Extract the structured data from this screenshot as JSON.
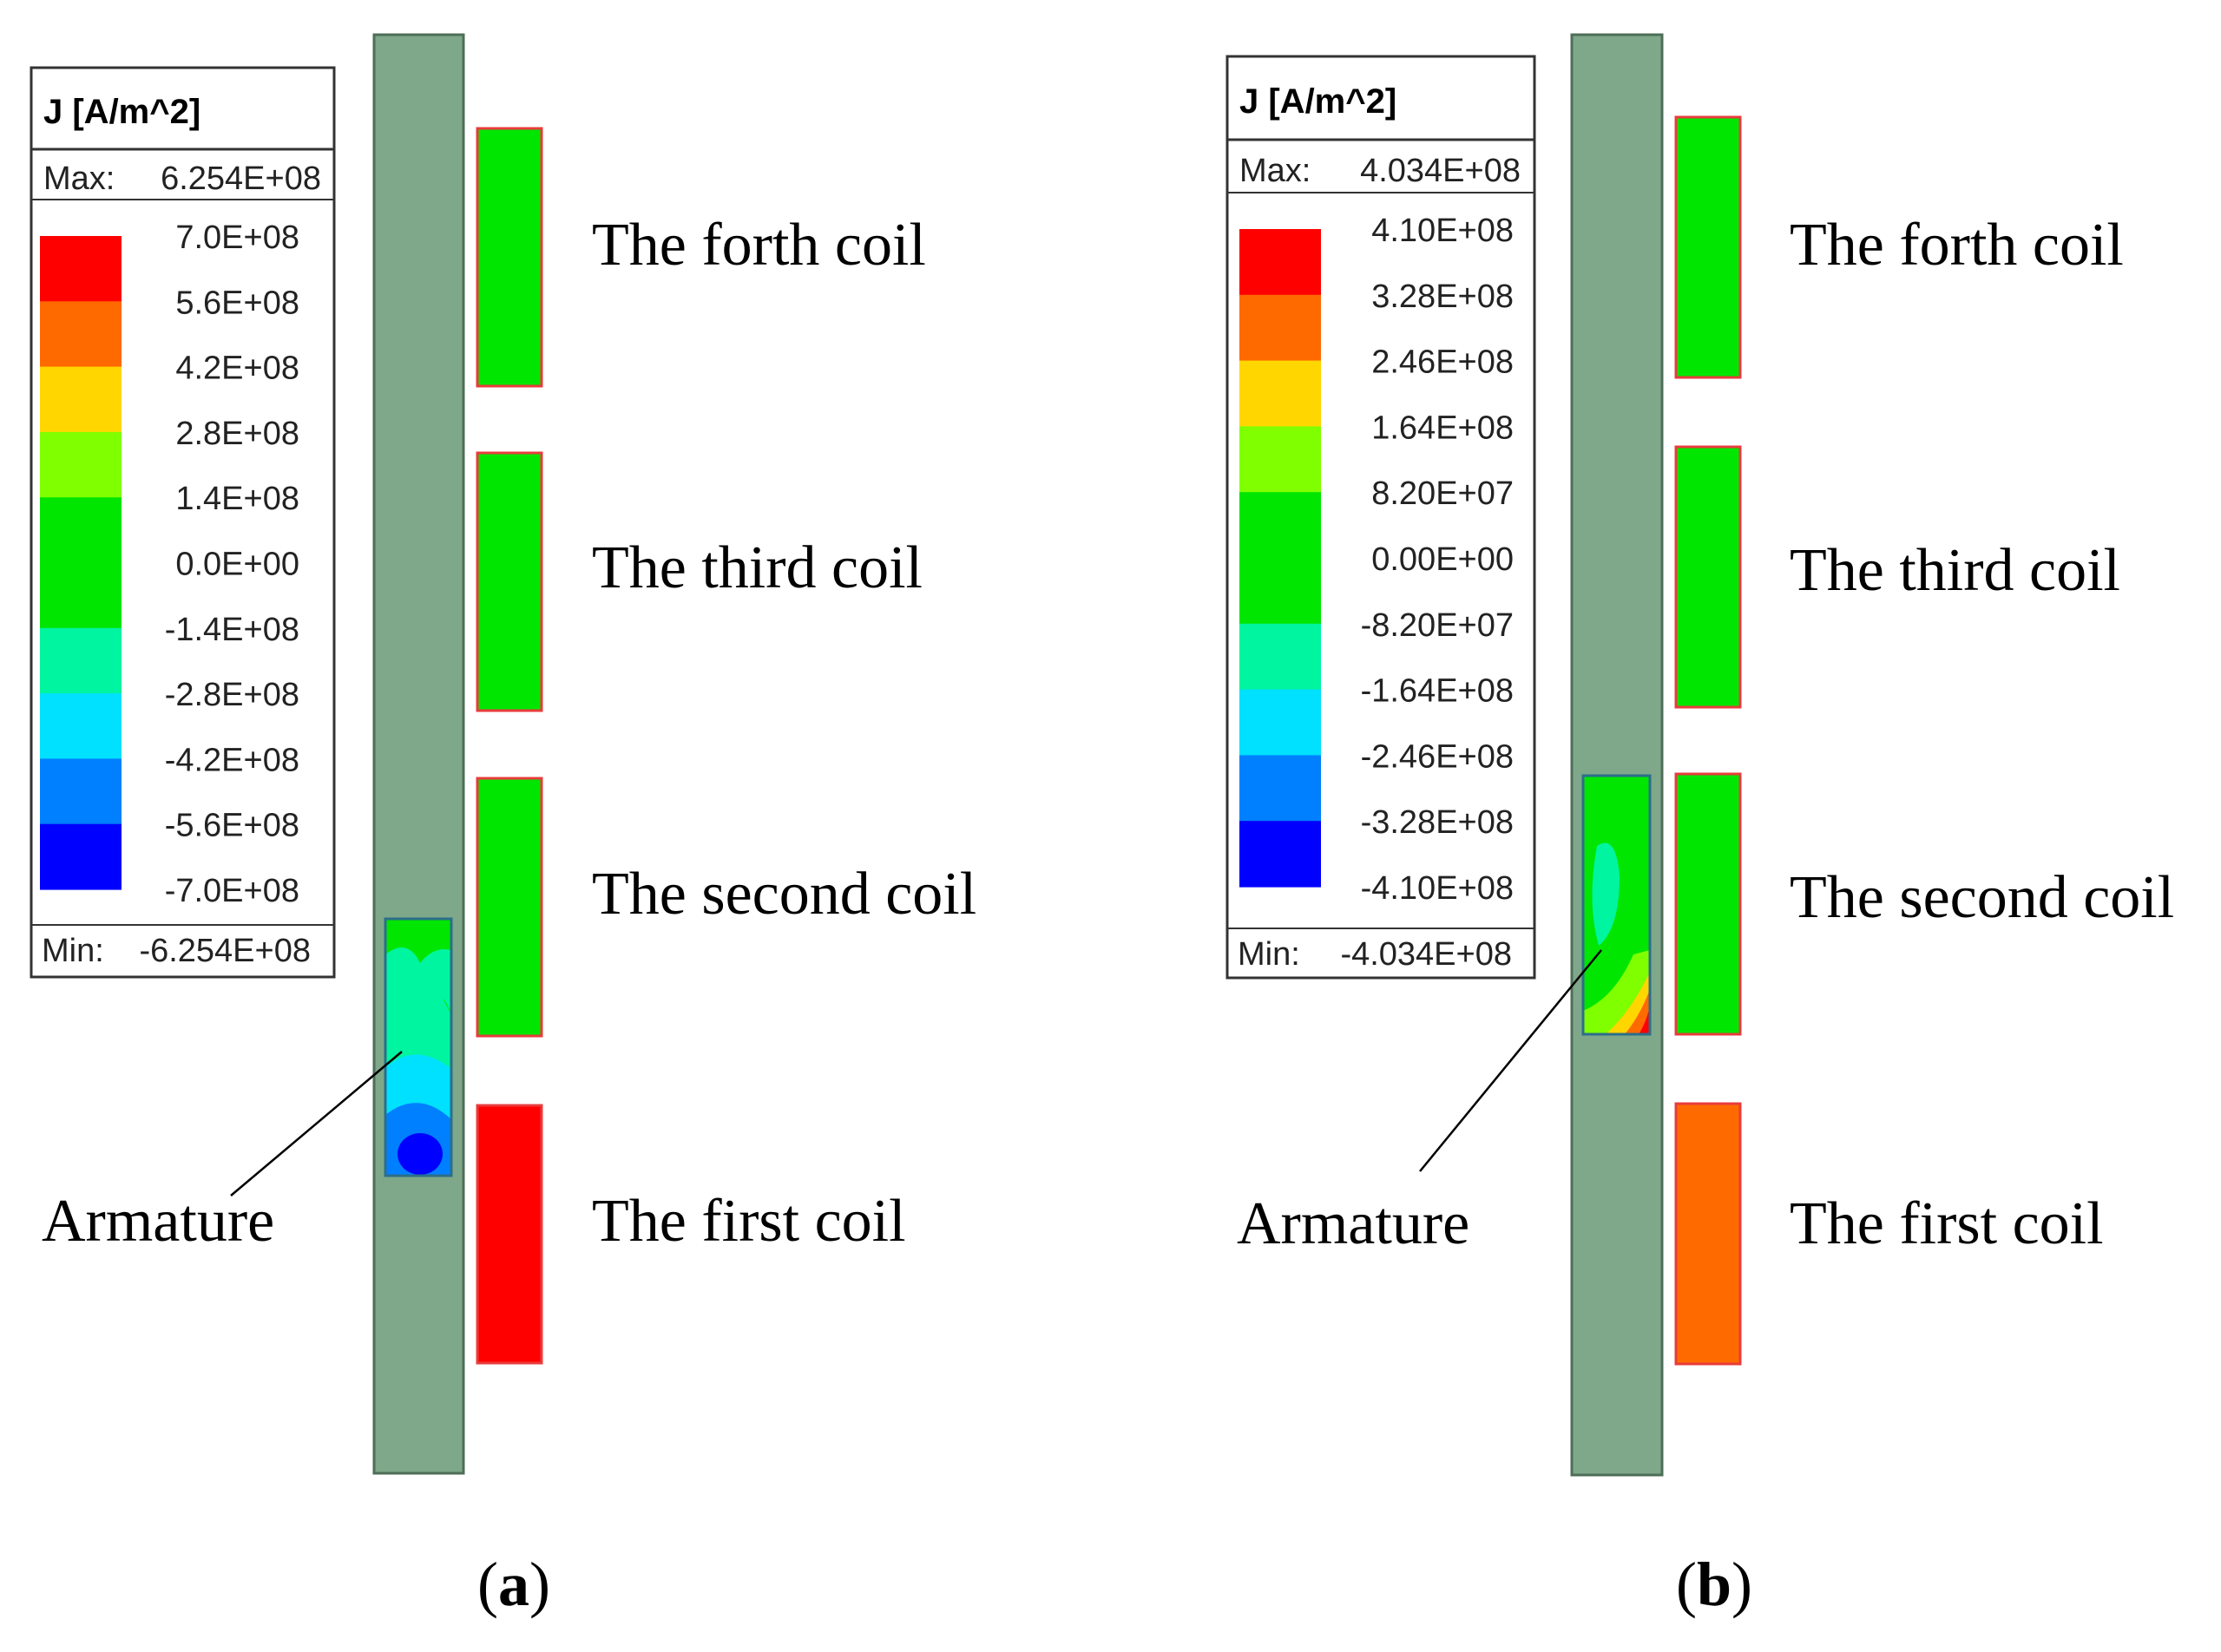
{
  "panels": [
    {
      "id": "a",
      "caption_letter": "a",
      "legend": {
        "title": "J [A/m^2]",
        "max_label": "Max:",
        "max_value": "6.254E+08",
        "min_label": "Min:",
        "min_value": "-6.254E+08",
        "levels": [
          "7.0E+08",
          "5.6E+08",
          "4.2E+08",
          "2.8E+08",
          "1.4E+08",
          "0.0E+00",
          "-1.4E+08",
          "-2.8E+08",
          "-4.2E+08",
          "-5.6E+08",
          "-7.0E+08"
        ]
      },
      "coils": [
        {
          "label": "The forth coil",
          "color": "#00e600"
        },
        {
          "label": "The third coil",
          "color": "#00e600"
        },
        {
          "label": "The second coil",
          "color": "#00e600"
        },
        {
          "label": "The first coil",
          "color": "#ff0000"
        }
      ],
      "armature_label": "Armature"
    },
    {
      "id": "b",
      "caption_letter": "b",
      "legend": {
        "title": "J [A/m^2]",
        "max_label": "Max:",
        "max_value": "4.034E+08",
        "min_label": "Min:",
        "min_value": "-4.034E+08",
        "levels": [
          "4.10E+08",
          "3.28E+08",
          "2.46E+08",
          "1.64E+08",
          "8.20E+07",
          "0.00E+00",
          "-8.20E+07",
          "-1.64E+08",
          "-2.46E+08",
          "-3.28E+08",
          "-4.10E+08"
        ]
      },
      "coils": [
        {
          "label": "The forth coil",
          "color": "#00e600"
        },
        {
          "label": "The third coil",
          "color": "#00e600"
        },
        {
          "label": "The second coil",
          "color": "#00e600"
        },
        {
          "label": "The first coil",
          "color": "#ff6a00"
        }
      ],
      "armature_label": "Armature"
    }
  ],
  "colormap": [
    "#ff0000",
    "#ff6a00",
    "#ffd600",
    "#80ff00",
    "#00e600",
    "#00e600",
    "#00f5a0",
    "#00e0ff",
    "#0080ff",
    "#0000ff"
  ],
  "colors": {
    "barrel": "#7ea889",
    "barrel_edge": "#4f6e58",
    "coil_edge": "#e83c3c",
    "legend_border": "#333333",
    "armature_edge": "#2c6e8a"
  }
}
